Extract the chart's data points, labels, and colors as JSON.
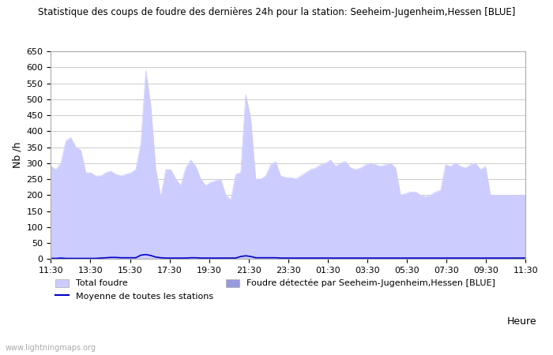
{
  "title": "Statistique des coups de foudre des dernières 24h pour la station: Seeheim-Jugenheim,Hessen [BLUE]",
  "xlabel": "Heure",
  "ylabel": "Nb /h",
  "ylim": [
    0,
    650
  ],
  "yticks": [
    0,
    50,
    100,
    150,
    200,
    250,
    300,
    350,
    400,
    450,
    500,
    550,
    600,
    650
  ],
  "x_labels": [
    "11:30",
    "13:30",
    "15:30",
    "17:30",
    "19:30",
    "21:30",
    "23:30",
    "01:30",
    "03:30",
    "05:30",
    "07:30",
    "09:30",
    "11:30"
  ],
  "fill_color_light": "#ccccff",
  "fill_color_dark": "#9999ee",
  "line_color": "#0000cc",
  "background_color": "#ffffff",
  "watermark": "www.lightningmaps.org",
  "legend_total": "Total foudre",
  "legend_moyenne": "Moyenne de toutes les stations",
  "legend_detected": "Foudre détectée par Seeheim-Jugenheim,Hessen [BLUE]",
  "total_foudre": [
    290,
    280,
    300,
    370,
    380,
    350,
    340,
    270,
    270,
    260,
    260,
    270,
    275,
    265,
    260,
    265,
    270,
    280,
    360,
    590,
    480,
    280,
    195,
    280,
    280,
    250,
    230,
    285,
    310,
    290,
    250,
    230,
    240,
    245,
    250,
    200,
    185,
    265,
    270,
    515,
    440,
    250,
    250,
    260,
    295,
    305,
    260,
    255,
    255,
    250,
    260,
    270,
    280,
    285,
    295,
    300,
    310,
    290,
    300,
    305,
    285,
    280,
    285,
    295,
    300,
    295,
    290,
    295,
    300,
    285,
    200,
    205,
    210,
    210,
    200,
    195,
    200,
    210,
    215,
    295,
    290,
    300,
    290,
    285,
    295,
    300,
    280,
    290,
    200,
    200,
    200,
    200,
    200,
    200,
    200,
    200
  ],
  "detected_foudre": [
    0,
    0,
    0,
    0,
    0,
    0,
    0,
    0,
    0,
    0,
    0,
    0,
    0,
    0,
    0,
    0,
    0,
    0,
    0,
    0,
    0,
    0,
    0,
    0,
    0,
    0,
    0,
    0,
    0,
    0,
    0,
    0,
    0,
    0,
    0,
    0,
    0,
    0,
    0,
    0,
    0,
    0,
    0,
    0,
    0,
    0,
    0,
    0,
    0,
    0,
    0,
    0,
    0,
    0,
    0,
    0,
    0,
    0,
    0,
    0,
    0,
    0,
    0,
    0,
    0,
    0,
    0,
    0,
    0,
    0,
    0,
    0,
    0,
    0,
    0,
    0,
    0,
    0,
    0,
    0,
    0,
    0,
    0,
    0,
    0,
    0,
    0,
    0,
    0,
    0,
    0,
    0,
    0,
    0,
    0,
    0
  ],
  "moyenne": [
    2,
    2,
    3,
    2,
    2,
    2,
    2,
    2,
    2,
    2,
    3,
    4,
    5,
    5,
    4,
    4,
    4,
    4,
    12,
    14,
    11,
    6,
    4,
    3,
    3,
    3,
    3,
    3,
    4,
    4,
    3,
    3,
    3,
    3,
    3,
    3,
    3,
    3,
    8,
    10,
    8,
    4,
    4,
    4,
    4,
    4,
    3,
    3,
    3,
    3,
    3,
    3,
    3,
    3,
    3,
    3,
    3,
    3,
    3,
    3,
    3,
    3,
    3,
    3,
    3,
    3,
    3,
    3,
    3,
    3,
    3,
    3,
    3,
    3,
    3,
    3,
    3,
    3,
    3,
    3,
    3,
    3,
    3,
    3,
    3,
    3,
    3,
    3,
    3,
    3,
    3,
    3,
    3,
    3,
    3,
    3
  ]
}
